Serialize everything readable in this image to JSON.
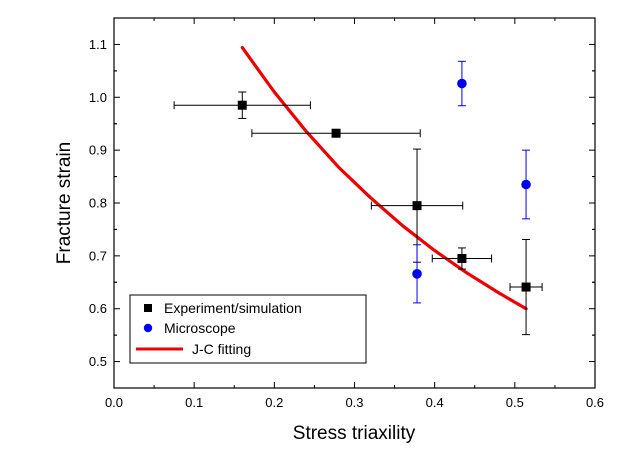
{
  "chart_data": {
    "type": "scatter",
    "title": "",
    "xlabel": "Stress triaxility",
    "ylabel": "Fracture strain",
    "xlim": [
      0.0,
      0.6
    ],
    "ylim": [
      0.45,
      1.15
    ],
    "xticks": [
      "0.0",
      "0.1",
      "0.2",
      "0.3",
      "0.4",
      "0.5",
      "0.6"
    ],
    "yticks": [
      "0.5",
      "0.6",
      "0.7",
      "0.8",
      "0.9",
      "1.0",
      "1.1"
    ],
    "legend_position": "bottom-left",
    "series": [
      {
        "name": "Experiment/simulation",
        "marker": "square",
        "color": "#000000",
        "points": [
          {
            "x": 0.16,
            "y": 0.985,
            "xerr": 0.085,
            "yerr": 0.025
          },
          {
            "x": 0.277,
            "y": 0.932,
            "xerr": 0.105,
            "yerr": 0.0
          },
          {
            "x": 0.378,
            "y": 0.795,
            "xerr": 0.057,
            "yerr": 0.107
          },
          {
            "x": 0.434,
            "y": 0.695,
            "xerr": 0.037,
            "yerr": 0.02
          },
          {
            "x": 0.514,
            "y": 0.641,
            "xerr": 0.02,
            "yerr": 0.09
          }
        ]
      },
      {
        "name": "Microscope",
        "marker": "circle",
        "color": "#0000ee",
        "points": [
          {
            "x": 0.378,
            "y": 0.666,
            "yerr": 0.055
          },
          {
            "x": 0.434,
            "y": 1.026,
            "yerr": 0.042
          },
          {
            "x": 0.514,
            "y": 0.835,
            "yerr": 0.065
          }
        ]
      },
      {
        "name": "J-C fitting",
        "type": "line",
        "color": "#ee0000",
        "x": [
          0.16,
          0.2,
          0.24,
          0.28,
          0.32,
          0.36,
          0.4,
          0.44,
          0.48,
          0.514
        ],
        "y": [
          1.094,
          1.01,
          0.935,
          0.868,
          0.81,
          0.757,
          0.71,
          0.668,
          0.63,
          0.6
        ]
      }
    ]
  }
}
